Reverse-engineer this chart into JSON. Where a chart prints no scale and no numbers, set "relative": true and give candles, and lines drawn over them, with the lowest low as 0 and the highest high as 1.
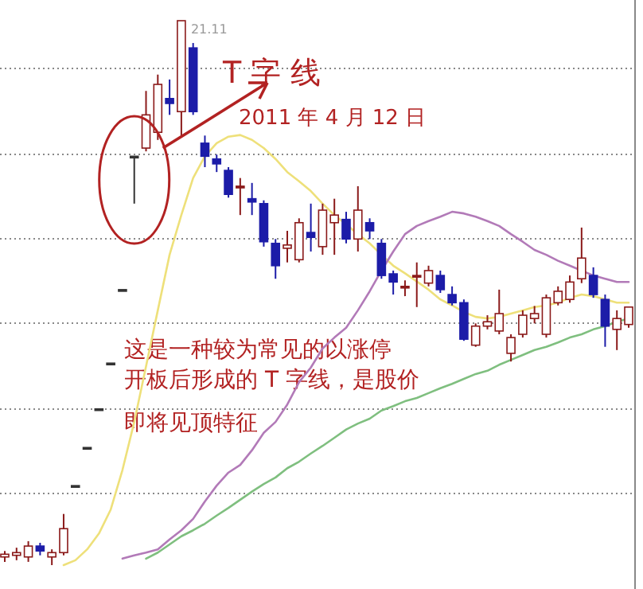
{
  "chart_data": {
    "type": "candlestick",
    "relative": true,
    "grid": "y",
    "categories": [
      null,
      null,
      null,
      null,
      null,
      null,
      null,
      null,
      null,
      null,
      null,
      null,
      null,
      null,
      null,
      null,
      null,
      null,
      null,
      null,
      null,
      null,
      null,
      null,
      null,
      null,
      null,
      null,
      null,
      null,
      null,
      null,
      null,
      null,
      null,
      null,
      null,
      null,
      null,
      null,
      null,
      null,
      null,
      null,
      null,
      null,
      null,
      null,
      null,
      null,
      null,
      null,
      null,
      null
    ],
    "ohlc": [
      [
        0.015,
        0.026,
        0.006,
        0.02
      ],
      [
        0.018,
        0.032,
        0.009,
        0.023
      ],
      [
        0.015,
        0.044,
        0.006,
        0.035
      ],
      [
        0.035,
        0.041,
        0.018,
        0.026
      ],
      [
        0.015,
        0.029,
        0,
        0.023
      ],
      [
        0.023,
        0.094,
        0.018,
        0.067
      ],
      [
        0.146,
        0.146,
        0.146,
        0.146
      ],
      [
        0.216,
        0.216,
        0.216,
        0.216
      ],
      [
        0.287,
        0.287,
        0.287,
        0.287
      ],
      [
        0.371,
        0.371,
        0.371,
        0.371
      ],
      [
        0.506,
        0.506,
        0.506,
        0.506
      ],
      [
        0.751,
        0.751,
        0.664,
        0.751
      ],
      [
        0.766,
        0.871,
        0.76,
        0.827
      ],
      [
        0.795,
        0.901,
        0.781,
        0.883
      ],
      [
        0.857,
        0.892,
        0.827,
        0.848
      ],
      [
        0.833,
        1,
        0.789,
        1
      ],
      [
        0.95,
        0.959,
        0.827,
        0.833
      ],
      [
        0.775,
        0.789,
        0.731,
        0.751
      ],
      [
        0.746,
        0.754,
        0.722,
        0.737
      ],
      [
        0.725,
        0.731,
        0.675,
        0.681
      ],
      [
        0.696,
        0.711,
        0.643,
        0.693
      ],
      [
        0.673,
        0.702,
        0.643,
        0.667
      ],
      [
        0.664,
        0.67,
        0.585,
        0.594
      ],
      [
        0.591,
        0.599,
        0.526,
        0.55
      ],
      [
        0.582,
        0.614,
        0.556,
        0.588
      ],
      [
        0.561,
        0.637,
        0.556,
        0.629
      ],
      [
        0.611,
        0.664,
        0.576,
        0.602
      ],
      [
        0.585,
        0.664,
        0.57,
        0.652
      ],
      [
        0.629,
        0.673,
        0.57,
        0.643
      ],
      [
        0.635,
        0.649,
        0.591,
        0.599
      ],
      [
        0.599,
        0.696,
        0.576,
        0.652
      ],
      [
        0.629,
        0.637,
        0.599,
        0.614
      ],
      [
        0.591,
        0.599,
        0.526,
        0.532
      ],
      [
        0.535,
        0.541,
        0.497,
        0.52
      ],
      [
        0.512,
        0.523,
        0.494,
        0.512
      ],
      [
        0.532,
        0.556,
        0.474,
        0.532
      ],
      [
        0.518,
        0.55,
        0.512,
        0.541
      ],
      [
        0.532,
        0.541,
        0.5,
        0.506
      ],
      [
        0.497,
        0.512,
        0.477,
        0.482
      ],
      [
        0.482,
        0.488,
        0.412,
        0.415
      ],
      [
        0.404,
        0.444,
        0.401,
        0.439
      ],
      [
        0.439,
        0.459,
        0.433,
        0.447
      ],
      [
        0.43,
        0.506,
        0.424,
        0.462
      ],
      [
        0.389,
        0.424,
        0.374,
        0.418
      ],
      [
        0.424,
        0.468,
        0.418,
        0.459
      ],
      [
        0.453,
        0.476,
        0.444,
        0.462
      ],
      [
        0.424,
        0.497,
        0.418,
        0.491
      ],
      [
        0.482,
        0.512,
        0.477,
        0.503
      ],
      [
        0.488,
        0.532,
        0.482,
        0.52
      ],
      [
        0.526,
        0.62,
        0.518,
        0.564
      ],
      [
        0.532,
        0.547,
        0.491,
        0.497
      ],
      [
        0.488,
        0.497,
        0.401,
        0.439
      ],
      [
        0.433,
        0.468,
        0.395,
        0.453
      ],
      [
        0.442,
        0.474,
        0.436,
        0.474
      ]
    ],
    "colors": [
      "#8b1a1a",
      "#8b1a1a",
      "#8b1a1a",
      "#1c1ca8",
      "#8b1a1a",
      "#8b1a1a",
      "#333333",
      "#333333",
      "#333333",
      "#333333",
      "#333333",
      "#333333",
      "#8b1a1a",
      "#8b1a1a",
      "#1c1ca8",
      "#8b1a1a",
      "#1c1ca8",
      "#1c1ca8",
      "#1c1ca8",
      "#1c1ca8",
      "#8b1a1a",
      "#1c1ca8",
      "#1c1ca8",
      "#1c1ca8",
      "#8b1a1a",
      "#8b1a1a",
      "#1c1ca8",
      "#8b1a1a",
      "#8b1a1a",
      "#1c1ca8",
      "#8b1a1a",
      "#1c1ca8",
      "#1c1ca8",
      "#1c1ca8",
      "#8b1a1a",
      "#8b1a1a",
      "#8b1a1a",
      "#1c1ca8",
      "#1c1ca8",
      "#1c1ca8",
      "#8b1a1a",
      "#8b1a1a",
      "#8b1a1a",
      "#8b1a1a",
      "#8b1a1a",
      "#8b1a1a",
      "#8b1a1a",
      "#8b1a1a",
      "#8b1a1a",
      "#8b1a1a",
      "#1c1ca8",
      "#1c1ca8",
      "#8b1a1a",
      "#8b1a1a"
    ],
    "series": [
      {
        "type": "line",
        "color": "#eee07a",
        "values": [
          null,
          null,
          null,
          null,
          null,
          0,
          0.009,
          0.029,
          0.058,
          0.102,
          0.175,
          0.263,
          0.365,
          0.468,
          0.57,
          0.643,
          0.711,
          0.751,
          0.775,
          0.787,
          0.79,
          0.781,
          0.766,
          0.746,
          0.722,
          0.705,
          0.687,
          0.664,
          0.643,
          0.626,
          0.608,
          0.591,
          0.57,
          0.55,
          0.536,
          0.521,
          0.506,
          0.488,
          0.477,
          0.465,
          0.456,
          0.453,
          0.456,
          0.462,
          0.468,
          0.474,
          0.477,
          0.482,
          0.491,
          0.497,
          0.494,
          0.488,
          0.482,
          0.482
        ]
      },
      {
        "type": "line",
        "color": "#b27ab8",
        "values": [
          null,
          null,
          null,
          null,
          null,
          null,
          null,
          null,
          null,
          null,
          0.012,
          0.018,
          0.023,
          0.029,
          0.047,
          0.064,
          0.085,
          0.117,
          0.146,
          0.17,
          0.184,
          0.211,
          0.243,
          0.263,
          0.295,
          0.336,
          0.363,
          0.398,
          0.418,
          0.436,
          0.468,
          0.503,
          0.541,
          0.576,
          0.608,
          0.623,
          0.632,
          0.64,
          0.649,
          0.646,
          0.64,
          0.632,
          0.623,
          0.608,
          0.594,
          0.579,
          0.57,
          0.559,
          0.55,
          0.541,
          0.532,
          0.526,
          0.52,
          0.52
        ]
      },
      {
        "type": "line",
        "color": "#7fbf7f",
        "values": [
          null,
          null,
          null,
          null,
          null,
          null,
          null,
          null,
          null,
          null,
          null,
          null,
          0.012,
          0.023,
          0.038,
          0.053,
          0.064,
          0.076,
          0.091,
          0.105,
          0.12,
          0.135,
          0.149,
          0.161,
          0.178,
          0.19,
          0.205,
          0.219,
          0.234,
          0.249,
          0.26,
          0.269,
          0.284,
          0.292,
          0.301,
          0.307,
          0.316,
          0.325,
          0.333,
          0.342,
          0.351,
          0.357,
          0.368,
          0.377,
          0.386,
          0.395,
          0.401,
          0.409,
          0.418,
          0.424,
          0.433,
          0.439,
          0.447,
          0.453
        ]
      }
    ],
    "annotations": [
      "21.11",
      "T 字 线",
      "2011 年 4 月 12 日",
      "这是一种较为常见的以涨停",
      "开板后形成的 T 字线，是股价",
      "即将见顶特征"
    ]
  }
}
